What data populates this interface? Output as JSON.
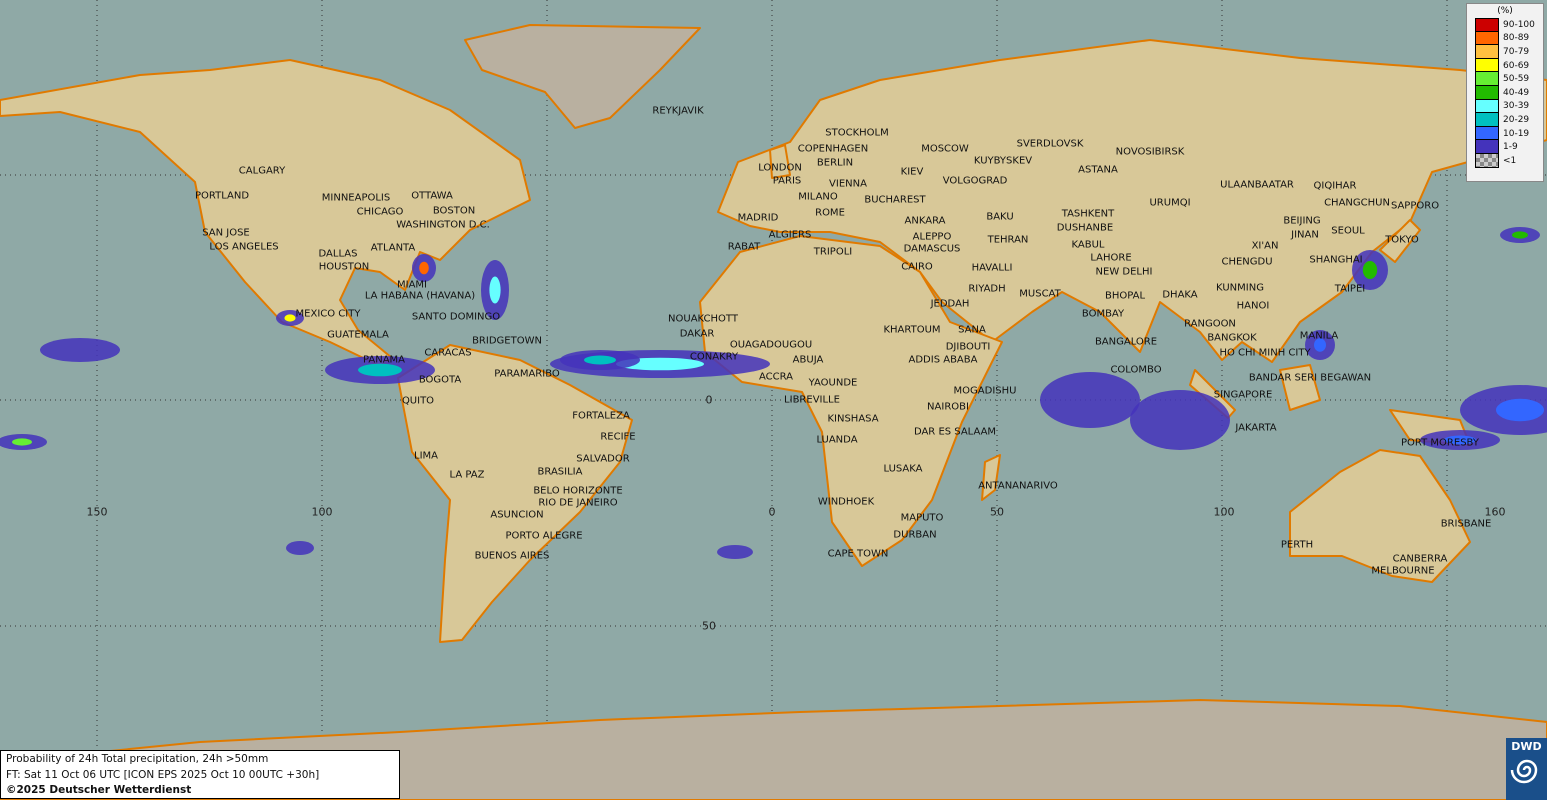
{
  "map": {
    "title": "Probability of 24h Total precipitation, 24h >50mm",
    "forecast_time": "FT: Sat 11 Oct 06 UTC [ICON EPS 2025 Oct 10 00UTC +30h]",
    "copyright": "©2025 Deutscher Wetterdienst",
    "logo_text": "DWD",
    "colors": {
      "ocean": "#8fa9a6",
      "land": "#d8c898",
      "coast": "#e07a00",
      "ice": "#b9b0a0"
    },
    "longitude_labels": [
      "150",
      "100",
      "0",
      "50",
      "100",
      "160"
    ],
    "latitude_labels": [
      "0",
      "50"
    ],
    "cities": [
      "REYKJAVIK",
      "STOCKHOLM",
      "COPENHAGEN",
      "MOSCOW",
      "SVERDLOVSK",
      "KUYBYSKEV",
      "NOVOSIBIRSK",
      "LONDON",
      "BERLIN",
      "PARIS",
      "KIEV",
      "VIENNA",
      "VOLGOGRAD",
      "ASTANA",
      "ULAANBAATAR",
      "QIQIHAR",
      "CALGARY",
      "PORTLAND",
      "MINNEAPOLIS",
      "OTTAWA",
      "CHICAGO",
      "BOSTON",
      "WASHINGTON D.C.",
      "MILANO",
      "BUCHAREST",
      "CHANGCHUN",
      "SAPPORO",
      "TASHKENT",
      "URUMQI",
      "MADRID",
      "ROME",
      "ANKARA",
      "BAKU",
      "DUSHANBE",
      "BEIJING",
      "SEOUL",
      "JINAN",
      "ALGIERS",
      "SAN JOSE",
      "ALEPPO",
      "TOKYO",
      "KABUL",
      "XI'AN",
      "LOS ANGELES",
      "ATLANTA",
      "RABAT",
      "TRIPOLI",
      "DAMASCUS",
      "TEHRAN",
      "LAHORE",
      "DALLAS",
      "SHANGHAI",
      "CHENGDU",
      "HOUSTON",
      "CAIRO",
      "HAVALLI",
      "NEW DELHI",
      "MIAMI",
      "RIYADH",
      "MUSCAT",
      "KUNMING",
      "TAIPEI",
      "DHAKA",
      "LA HABANA (HAVANA)",
      "BHOPAL",
      "JEDDAH",
      "HANOI",
      "MEXICO CITY",
      "SANTO DOMINGO",
      "NOUAKCHOTT",
      "BOMBAY",
      "RANGOON",
      "KHARTOUM",
      "SANA",
      "GUATEMALA",
      "DAKAR",
      "BANGKOK",
      "MANILA",
      "BRIDGETOWN",
      "OUAGADOUGOU",
      "DJIBOUTI",
      "BANGALORE",
      "PANAMA",
      "CARACAS",
      "CONAKRY",
      "ABUJA",
      "ADDIS ABABA",
      "HO CHI MINH CITY",
      "COLOMBO",
      "PARAMARIBO",
      "BOGOTA",
      "ACCRA",
      "YAOUNDE",
      "MOGADISHU",
      "BANDAR SERI BEGAWAN",
      "QUITO",
      "LIBREVILLE",
      "NAIROBI",
      "SINGAPORE",
      "FORTALEZA",
      "KINSHASA",
      "RECIFE",
      "DAR ES SALAAM",
      "JAKARTA",
      "PORT MORESBY",
      "LUANDA",
      "LIMA",
      "SALVADOR",
      "LA PAZ",
      "BRASILIA",
      "LUSAKA",
      "ANTANANARIVO",
      "BELO HORIZONTE",
      "RIO DE JANEIRO",
      "WINDHOEK",
      "ASUNCION",
      "MAPUTO",
      "BRISBANE",
      "DURBAN",
      "PORTO ALEGRE",
      "PERTH",
      "BUENOS AIRES",
      "CAPE TOWN",
      "CANBERRA",
      "MELBOURNE"
    ]
  },
  "legend": {
    "unit": "(%)",
    "items": [
      {
        "label": "90-100",
        "color": "#cc0000"
      },
      {
        "label": "80-89",
        "color": "#ff6600"
      },
      {
        "label": "70-79",
        "color": "#ffc040"
      },
      {
        "label": "60-69",
        "color": "#ffff00"
      },
      {
        "label": "50-59",
        "color": "#66ee33"
      },
      {
        "label": "40-49",
        "color": "#22bb00"
      },
      {
        "label": "30-39",
        "color": "#66ffff"
      },
      {
        "label": "20-29",
        "color": "#00c0c0"
      },
      {
        "label": "10-19",
        "color": "#3366ff"
      },
      {
        "label": "1-9",
        "color": "#4433bb"
      },
      {
        "label": "<1",
        "color": "#aaaaaa"
      }
    ]
  }
}
